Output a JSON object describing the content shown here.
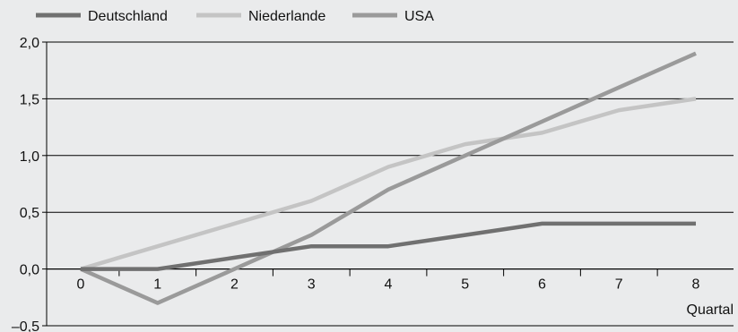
{
  "chart_data": {
    "type": "line",
    "x": [
      0,
      1,
      2,
      3,
      4,
      5,
      6,
      7,
      8
    ],
    "series": [
      {
        "name": "Deutschland",
        "color": "#707070",
        "values": [
          0.0,
          0.0,
          0.1,
          0.2,
          0.2,
          0.3,
          0.4,
          0.4,
          0.4
        ]
      },
      {
        "name": "Niederlande",
        "color": "#c4c4c4",
        "values": [
          0.0,
          0.2,
          0.4,
          0.6,
          0.9,
          1.1,
          1.2,
          1.4,
          1.5
        ]
      },
      {
        "name": "USA",
        "color": "#9a9a9a",
        "values": [
          0.0,
          -0.3,
          0.0,
          0.3,
          0.7,
          1.0,
          1.3,
          1.6,
          1.9
        ]
      }
    ],
    "xlabel": "Quartal",
    "ylabel": "",
    "xlim": [
      0,
      8
    ],
    "ylim": [
      -0.5,
      2.0
    ],
    "yticks": [
      -0.5,
      0.0,
      0.5,
      1.0,
      1.5,
      2.0
    ],
    "ytick_labels": [
      "–0,5",
      "0,0",
      "0,5",
      "1,0",
      "1,5",
      "2,0"
    ],
    "xtick_labels": [
      "0",
      "1",
      "2",
      "3",
      "4",
      "5",
      "6",
      "7",
      "8"
    ],
    "grid": "horizontal",
    "legend": "top-left"
  }
}
